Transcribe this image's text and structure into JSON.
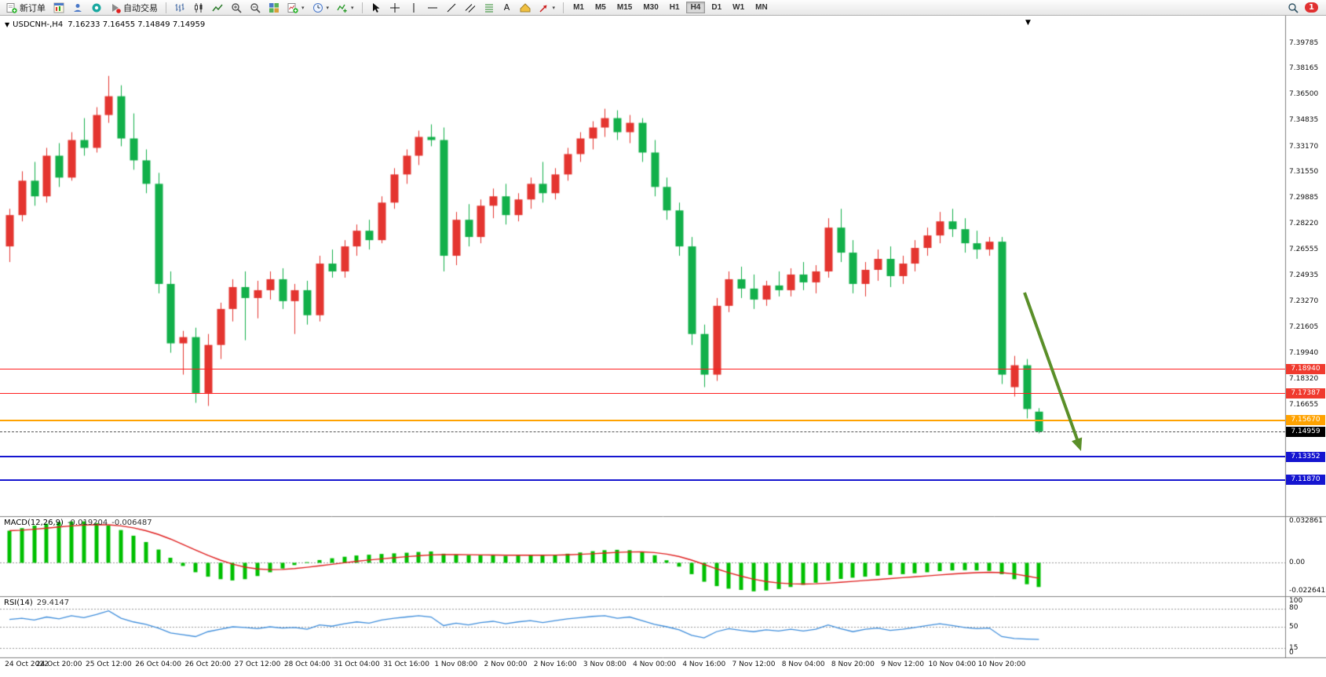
{
  "toolbar": {
    "new_order": "新订单",
    "auto_trading": "自动交易",
    "timeframes": [
      "M1",
      "M5",
      "M15",
      "M30",
      "H1",
      "H4",
      "D1",
      "W1",
      "MN"
    ],
    "active_timeframe": "H4",
    "notification_count": "1"
  },
  "icons": {
    "one-click-trading": "▼",
    "dropdown-caret": "▾",
    "crosshair": "+",
    "vertical-line": "|",
    "horizontal-line": "—",
    "trendline": "/",
    "text-tool": "A",
    "chart-shift-marker": "▼"
  },
  "chart_header": {
    "symbol_period": "USDCNH-,H4",
    "open": "7.16233",
    "high": "7.16455",
    "low": "7.14849",
    "close": "7.14959"
  },
  "price_axis_labels": [
    "7.39785",
    "7.38165",
    "7.36500",
    "7.34835",
    "7.33170",
    "7.31550",
    "7.29885",
    "7.28220",
    "7.26555",
    "7.24935",
    "7.23270",
    "7.21605",
    "7.19940",
    "7.18320",
    "7.16655"
  ],
  "price_lines": [
    {
      "name": "resistance-line-1",
      "price": 7.1894,
      "label": "7.18940",
      "color": "#ff1f1f",
      "thickness": 1,
      "dashed": false,
      "tag_bg": "#f03a2e"
    },
    {
      "name": "resistance-line-2",
      "price": 7.17387,
      "label": "7.17387",
      "color": "#ff1f1f",
      "thickness": 1,
      "dashed": false,
      "tag_bg": "#f03a2e"
    },
    {
      "name": "support-line-orange",
      "price": 7.1567,
      "label": "7.15670",
      "color": "#ffa200",
      "thickness": 2,
      "dashed": false,
      "tag_bg": "#ffa200"
    },
    {
      "name": "current-price-line",
      "price": 7.14959,
      "label": "7.14959",
      "color": "#555555",
      "thickness": 1,
      "dashed": true,
      "tag_bg": "#000000"
    },
    {
      "name": "support-line-blue-1",
      "price": 7.13352,
      "label": "7.13352",
      "color": "#1515d0",
      "thickness": 2,
      "dashed": false,
      "tag_bg": "#1515d0"
    },
    {
      "name": "support-line-blue-2",
      "price": 7.1187,
      "label": "7.11870",
      "color": "#1515d0",
      "thickness": 2,
      "dashed": false,
      "tag_bg": "#1515d0"
    }
  ],
  "macd_panel": {
    "label": "MACD(12,26,9)",
    "value": "-0.019204",
    "signal_value": "-0.006487",
    "axis_labels": [
      {
        "text": "0.032861",
        "value": 0.032861
      },
      {
        "text": "0.00",
        "value": 0
      },
      {
        "text": "-0.022641",
        "value": -0.022641
      }
    ]
  },
  "rsi_panel": {
    "label": "RSI(14)",
    "value": "29.4147",
    "levels": [
      80,
      50,
      15
    ],
    "axis_labels": [
      {
        "text": "100",
        "value": 100
      },
      {
        "text": "80",
        "value": 80
      },
      {
        "text": "50",
        "value": 50
      },
      {
        "text": "15",
        "value": 15
      },
      {
        "text": "0",
        "value": 0
      }
    ]
  },
  "time_axis": [
    "24 Oct 2022",
    "24 Oct 20:00",
    "25 Oct 12:00",
    "26 Oct 04:00",
    "26 Oct 20:00",
    "27 Oct 12:00",
    "28 Oct 04:00",
    "31 Oct 04:00",
    "31 Oct 16:00",
    "1 Nov 08:00",
    "2 Nov 00:00",
    "2 Nov 16:00",
    "3 Nov 08:00",
    "4 Nov 00:00",
    "4 Nov 16:00",
    "7 Nov 12:00",
    "8 Nov 04:00",
    "8 Nov 20:00",
    "9 Nov 12:00",
    "10 Nov 04:00",
    "10 Nov 20:00"
  ],
  "chart_data": {
    "type": "candlestick+indicators",
    "symbol": "USDCNH-",
    "timeframe": "H4",
    "price_range": [
      7.0955,
      7.4155
    ],
    "candles": [
      [
        7.268,
        7.292,
        7.258,
        7.288
      ],
      [
        7.288,
        7.316,
        7.284,
        7.31
      ],
      [
        7.31,
        7.322,
        7.294,
        7.3
      ],
      [
        7.3,
        7.331,
        7.296,
        7.326
      ],
      [
        7.326,
        7.334,
        7.306,
        7.312
      ],
      [
        7.312,
        7.341,
        7.31,
        7.336
      ],
      [
        7.336,
        7.35,
        7.326,
        7.331
      ],
      [
        7.331,
        7.357,
        7.328,
        7.352
      ],
      [
        7.352,
        7.377,
        7.347,
        7.364
      ],
      [
        7.364,
        7.371,
        7.332,
        7.337
      ],
      [
        7.337,
        7.353,
        7.317,
        7.323
      ],
      [
        7.323,
        7.33,
        7.302,
        7.308
      ],
      [
        7.308,
        7.315,
        7.238,
        7.244
      ],
      [
        7.244,
        7.252,
        7.2,
        7.206
      ],
      [
        7.206,
        7.214,
        7.186,
        7.21
      ],
      [
        7.21,
        7.216,
        7.168,
        7.174
      ],
      [
        7.174,
        7.212,
        7.166,
        7.205
      ],
      [
        7.205,
        7.232,
        7.196,
        7.228
      ],
      [
        7.228,
        7.247,
        7.22,
        7.242
      ],
      [
        7.242,
        7.252,
        7.208,
        7.235
      ],
      [
        7.235,
        7.246,
        7.222,
        7.24
      ],
      [
        7.24,
        7.252,
        7.234,
        7.247
      ],
      [
        7.247,
        7.254,
        7.228,
        7.233
      ],
      [
        7.233,
        7.244,
        7.212,
        7.24
      ],
      [
        7.24,
        7.246,
        7.218,
        7.224
      ],
      [
        7.224,
        7.262,
        7.22,
        7.257
      ],
      [
        7.257,
        7.266,
        7.248,
        7.252
      ],
      [
        7.252,
        7.272,
        7.248,
        7.268
      ],
      [
        7.268,
        7.282,
        7.262,
        7.278
      ],
      [
        7.278,
        7.285,
        7.266,
        7.272
      ],
      [
        7.272,
        7.3,
        7.27,
        7.296
      ],
      [
        7.296,
        7.318,
        7.292,
        7.314
      ],
      [
        7.314,
        7.33,
        7.308,
        7.326
      ],
      [
        7.326,
        7.342,
        7.32,
        7.338
      ],
      [
        7.338,
        7.346,
        7.332,
        7.336
      ],
      [
        7.336,
        7.344,
        7.252,
        7.262
      ],
      [
        7.262,
        7.29,
        7.256,
        7.285
      ],
      [
        7.285,
        7.295,
        7.268,
        7.274
      ],
      [
        7.274,
        7.298,
        7.27,
        7.294
      ],
      [
        7.294,
        7.305,
        7.286,
        7.3
      ],
      [
        7.3,
        7.308,
        7.282,
        7.288
      ],
      [
        7.288,
        7.302,
        7.284,
        7.298
      ],
      [
        7.298,
        7.312,
        7.292,
        7.308
      ],
      [
        7.308,
        7.322,
        7.296,
        7.302
      ],
      [
        7.302,
        7.318,
        7.298,
        7.314
      ],
      [
        7.314,
        7.331,
        7.31,
        7.327
      ],
      [
        7.327,
        7.341,
        7.322,
        7.337
      ],
      [
        7.337,
        7.348,
        7.33,
        7.344
      ],
      [
        7.344,
        7.356,
        7.338,
        7.35
      ],
      [
        7.35,
        7.355,
        7.336,
        7.341
      ],
      [
        7.341,
        7.352,
        7.334,
        7.347
      ],
      [
        7.347,
        7.35,
        7.322,
        7.328
      ],
      [
        7.328,
        7.336,
        7.3,
        7.306
      ],
      [
        7.306,
        7.312,
        7.285,
        7.291
      ],
      [
        7.291,
        7.296,
        7.262,
        7.268
      ],
      [
        7.268,
        7.274,
        7.205,
        7.212
      ],
      [
        7.212,
        7.218,
        7.178,
        7.186
      ],
      [
        7.186,
        7.235,
        7.182,
        7.23
      ],
      [
        7.23,
        7.252,
        7.226,
        7.247
      ],
      [
        7.247,
        7.255,
        7.235,
        7.241
      ],
      [
        7.241,
        7.25,
        7.228,
        7.234
      ],
      [
        7.234,
        7.246,
        7.23,
        7.243
      ],
      [
        7.243,
        7.252,
        7.236,
        7.24
      ],
      [
        7.24,
        7.254,
        7.236,
        7.25
      ],
      [
        7.25,
        7.258,
        7.24,
        7.245
      ],
      [
        7.245,
        7.256,
        7.238,
        7.252
      ],
      [
        7.252,
        7.286,
        7.248,
        7.28
      ],
      [
        7.28,
        7.292,
        7.258,
        7.264
      ],
      [
        7.264,
        7.272,
        7.238,
        7.244
      ],
      [
        7.244,
        7.258,
        7.236,
        7.253
      ],
      [
        7.253,
        7.266,
        7.246,
        7.26
      ],
      [
        7.26,
        7.268,
        7.242,
        7.249
      ],
      [
        7.249,
        7.262,
        7.244,
        7.257
      ],
      [
        7.257,
        7.272,
        7.252,
        7.267
      ],
      [
        7.267,
        7.28,
        7.262,
        7.275
      ],
      [
        7.275,
        7.29,
        7.27,
        7.284
      ],
      [
        7.284,
        7.292,
        7.274,
        7.279
      ],
      [
        7.279,
        7.286,
        7.264,
        7.27
      ],
      [
        7.27,
        7.278,
        7.26,
        7.266
      ],
      [
        7.266,
        7.274,
        7.262,
        7.271
      ],
      [
        7.271,
        7.274,
        7.18,
        7.186
      ],
      [
        7.178,
        7.198,
        7.172,
        7.192
      ],
      [
        7.192,
        7.196,
        7.158,
        7.164
      ],
      [
        7.16233,
        7.16455,
        7.14849,
        7.14959
      ]
    ],
    "macd": {
      "range": [
        -0.0265,
        0.037
      ],
      "signal_ema": 9,
      "histogram": [
        0.0255,
        0.0275,
        0.0295,
        0.031,
        0.0322,
        0.0328,
        0.032861,
        0.0315,
        0.0295,
        0.026,
        0.0215,
        0.0165,
        0.0105,
        0.004,
        -0.0025,
        -0.0075,
        -0.011,
        -0.013,
        -0.014,
        -0.013,
        -0.0105,
        -0.0075,
        -0.0045,
        -0.0018,
        0.0005,
        0.0022,
        0.0036,
        0.0048,
        0.0058,
        0.0064,
        0.007,
        0.0075,
        0.008,
        0.0086,
        0.009,
        0.0072,
        0.0066,
        0.006,
        0.0058,
        0.006,
        0.0055,
        0.0058,
        0.0062,
        0.006,
        0.0064,
        0.0072,
        0.0082,
        0.0092,
        0.01,
        0.0103,
        0.01,
        0.0088,
        0.006,
        0.002,
        -0.003,
        -0.009,
        -0.015,
        -0.0185,
        -0.0205,
        -0.0215,
        -0.022641,
        -0.022,
        -0.0208,
        -0.0192,
        -0.0175,
        -0.0158,
        -0.0142,
        -0.0128,
        -0.0118,
        -0.011,
        -0.0102,
        -0.0096,
        -0.009,
        -0.0083,
        -0.0075,
        -0.0066,
        -0.006,
        -0.0058,
        -0.006,
        -0.0064,
        -0.009,
        -0.013,
        -0.017,
        -0.019204
      ]
    },
    "rsi": {
      "range": [
        0,
        100
      ],
      "values": [
        62,
        64,
        61,
        66,
        63,
        68,
        65,
        70,
        76,
        64,
        58,
        54,
        48,
        40,
        37,
        34,
        42,
        46,
        50,
        49,
        47,
        50,
        48,
        49,
        46,
        53,
        51,
        55,
        58,
        56,
        61,
        64,
        66,
        68,
        66,
        52,
        56,
        53,
        57,
        59,
        55,
        58,
        60,
        57,
        60,
        63,
        65,
        67,
        68,
        64,
        66,
        60,
        54,
        50,
        45,
        36,
        32,
        42,
        47,
        44,
        42,
        45,
        43,
        46,
        43,
        46,
        53,
        47,
        42,
        46,
        48,
        44,
        46,
        49,
        52,
        55,
        52,
        49,
        47,
        48,
        34,
        31,
        30,
        29.4147
      ]
    },
    "colors": {
      "up": "#e43530",
      "down": "#12b04a",
      "macd_hist": "#00bf00",
      "macd_signal": "#e02020",
      "rsi_line": "#3f8edc",
      "arrow": "#5a8f29"
    }
  }
}
